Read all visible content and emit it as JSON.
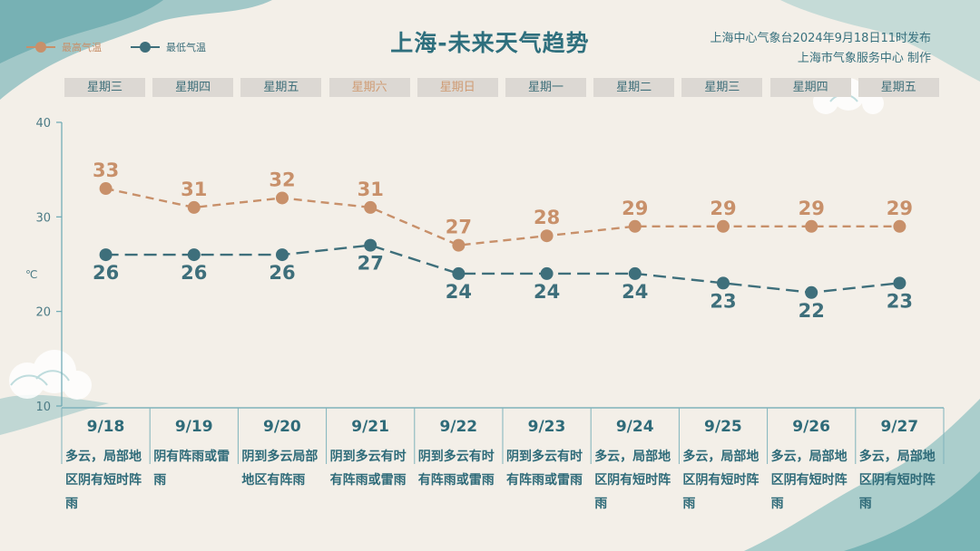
{
  "header": {
    "title": "上海-未来天气趋势",
    "publisher_line1": "上海中心气象台2024年9月18日11时发布",
    "publisher_line2": "上海市气象服务中心 制作"
  },
  "legend": {
    "high_label": "最高气温",
    "low_label": "最低气温"
  },
  "colors": {
    "high": "#c8906a",
    "low": "#3e6f7b",
    "axis": "#6aa7b2"
  },
  "weekdays": [
    "星期三",
    "星期四",
    "星期五",
    "星期六",
    "星期日",
    "星期一",
    "星期二",
    "星期三",
    "星期四",
    "星期五"
  ],
  "weekend_flags": [
    false,
    false,
    false,
    true,
    true,
    false,
    false,
    false,
    false,
    false
  ],
  "dates": [
    "9/18",
    "9/19",
    "9/20",
    "9/21",
    "9/22",
    "9/23",
    "9/24",
    "9/25",
    "9/26",
    "9/27"
  ],
  "descriptions": [
    "多云，局部地区阴有短时阵雨",
    "阴有阵雨或雷雨",
    "阴到多云局部地区有阵雨",
    "阴到多云有时有阵雨或雷雨",
    "阴到多云有时有阵雨或雷雨",
    "阴到多云有时有阵雨或雷雨",
    "多云，局部地区阴有短时阵雨",
    "多云，局部地区阴有短时阵雨",
    "多云，局部地区阴有短时阵雨",
    "多云，局部地区阴有短时阵雨"
  ],
  "chart_data": {
    "type": "line",
    "title": "上海-未来天气趋势",
    "x": [
      "9/18",
      "9/19",
      "9/20",
      "9/21",
      "9/22",
      "9/23",
      "9/24",
      "9/25",
      "9/26",
      "9/27"
    ],
    "ylabel": "℃",
    "ylim": [
      10,
      40
    ],
    "yticks": [
      40,
      30,
      20,
      10
    ],
    "series": [
      {
        "name": "最高气温",
        "values": [
          33,
          31,
          32,
          31,
          27,
          28,
          29,
          29,
          29,
          29
        ]
      },
      {
        "name": "最低气温",
        "values": [
          26,
          26,
          26,
          27,
          24,
          24,
          24,
          23,
          22,
          23
        ]
      }
    ]
  }
}
